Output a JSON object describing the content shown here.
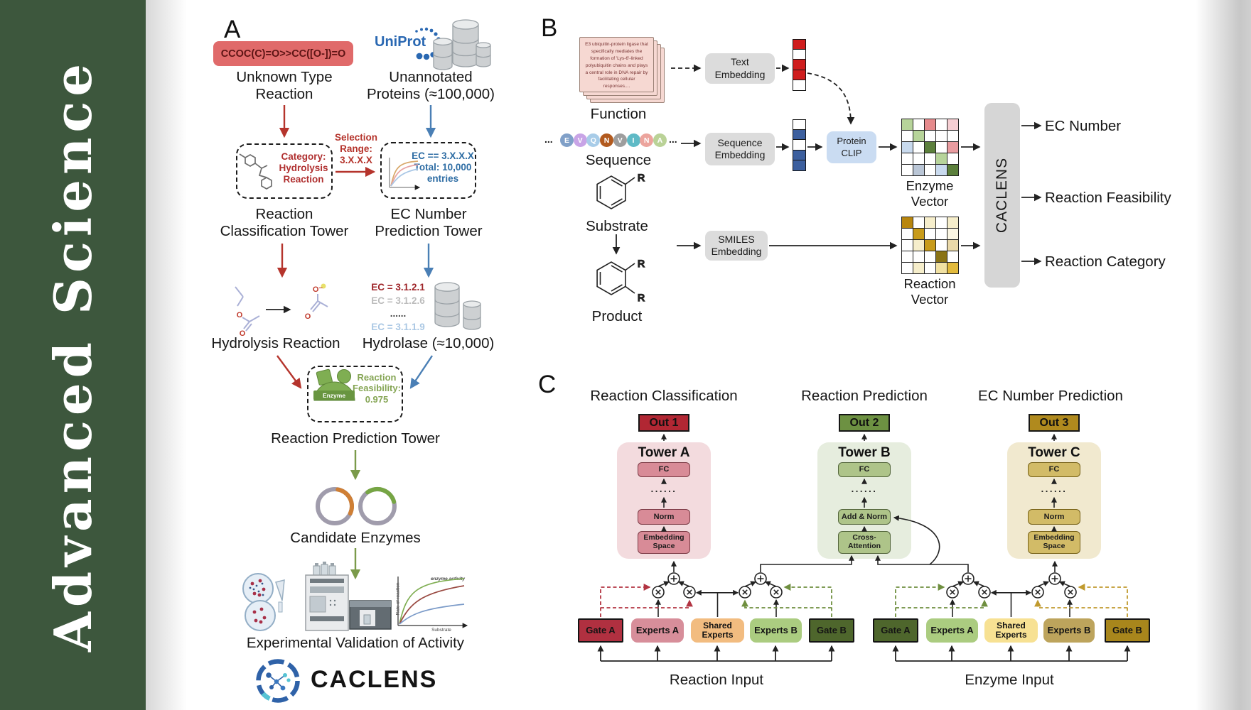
{
  "sidebar": {
    "journal_title": "Advanced  Science"
  },
  "panel_a": {
    "label": "A",
    "smiles_box": "CCOC(C)=O>>CC([O-])=O",
    "unknown_type": "Unknown Type\nReaction",
    "uniprot": "UniProt",
    "unannotated": "Unannotated\nProteins (≈100,000)",
    "selection_range": "Selection\nRange:\n3.X.X.X",
    "category_box": "Category:\nHydrolysis\nReaction",
    "ec_filter_box": "EC == 3.X.X.X\nTotal: 10,000\nentries",
    "tower1": "Reaction\nClassification Tower",
    "tower2": "EC Number\nPrediction Tower",
    "hydrolysis": "Hydrolysis Reaction",
    "ec_items": [
      {
        "text": "EC = 3.1.2.1",
        "color": "#9e2428"
      },
      {
        "text": "EC = 3.1.2.6",
        "color": "#bcbcbc"
      },
      {
        "text": "......",
        "color": "#3f3f3f"
      },
      {
        "text": "EC = 3.1.1.9",
        "color": "#abc8e4"
      }
    ],
    "hydrolase": "Hydrolase (≈10,000)",
    "enzyme": "Enzyme",
    "feasibility": "Reaction\nFeasibility:\n0.975",
    "tower3": "Reaction Prediction Tower",
    "candidates": "Candidate Enzymes",
    "plot": {
      "ylabel": "Rate of reaction",
      "xlabel": "Substrate",
      "note": "enzyme activity"
    },
    "validation": "Experimental Validation of Activity",
    "brand": "CACLENS",
    "atoms": {
      "o": "O",
      "o_minus": "O⁻"
    }
  },
  "panel_b": {
    "label": "B",
    "card_text": "E3 ubiquitin-protein ligase that specifically mediates the formation of 'Lys-6'-linked polyubiquitin chains and plays a central role in DNA repair by facilitating cellular responses....",
    "function": "Function",
    "sequence": "Sequence",
    "substrate": "Substrate",
    "product": "Product",
    "r_group": "R",
    "dots": "...",
    "residues": [
      {
        "letter": "E",
        "color": "#80a0c8"
      },
      {
        "letter": "V",
        "color": "#c8a4e6"
      },
      {
        "letter": "Q",
        "color": "#a8cce8"
      },
      {
        "letter": "N",
        "color": "#b25a1e"
      },
      {
        "letter": "V",
        "color": "#9e9e9e"
      },
      {
        "letter": "I",
        "color": "#5fbac6"
      },
      {
        "letter": "N",
        "color": "#eca49d"
      },
      {
        "letter": "A",
        "color": "#bad297"
      }
    ],
    "text_embedding": "Text\nEmbedding",
    "sequence_embedding": "Sequence\nEmbedding",
    "smiles_embedding": "SMILES\nEmbedding",
    "protein_clip": "Protein\nCLIP",
    "enzyme_vector": "Enzyme Vector",
    "reaction_vector": "Reaction Vector",
    "caclens": "CACLENS",
    "outputs": [
      "EC Number",
      "Reaction Feasibility",
      "Reaction Category"
    ],
    "text_vector_cells": [
      "#cf1d1d",
      "#ffffff",
      "#cf1d1d",
      "#cf1d1d",
      "#ffffff"
    ],
    "seq_vector_cells": [
      "#ffffff",
      "#3c5f9e",
      "#ffffff",
      "#3c5f9e",
      "#3c5f9e"
    ],
    "enzyme_matrix": [
      [
        "#b7d49a",
        "#ffffff",
        "#e68a8c",
        "#ffffff",
        "#f6cfd3"
      ],
      [
        "#ffffff",
        "#b7d49a",
        "#ffffff",
        "#ffffff",
        "#ffffff"
      ],
      [
        "#c9daee",
        "#ffffff",
        "#5c803c",
        "#ffffff",
        "#e99ca0"
      ],
      [
        "#ffffff",
        "#ffffff",
        "#ffffff",
        "#b7d49a",
        "#ffffff"
      ],
      [
        "#ffffff",
        "#bac6d6",
        "#ffffff",
        "#c9daee",
        "#5c803c"
      ]
    ],
    "reaction_matrix": [
      [
        "#b8860e",
        "#ffffff",
        "#f6eecb",
        "#ffffff",
        "#f6eecb"
      ],
      [
        "#ffffff",
        "#c89b1a",
        "#ffffff",
        "#ffffff",
        "#fbf6e3"
      ],
      [
        "#ffffff",
        "#f6eecb",
        "#c89b1a",
        "#ffffff",
        "#ead9a9"
      ],
      [
        "#ffffff",
        "#ffffff",
        "#ffffff",
        "#8a7315",
        "#ffffff"
      ],
      [
        "#ffffff",
        "#f6eecb",
        "#ffffff",
        "#f1e1a2",
        "#e2ba3c"
      ]
    ]
  },
  "panel_c": {
    "label": "C",
    "headers": [
      "Reaction Classification",
      "Reaction Prediction",
      "EC Number Prediction"
    ],
    "towers": [
      {
        "out": "Out 1",
        "name": "Tower A",
        "fc": "FC",
        "dots": "......",
        "mid": "Norm",
        "bottom": "Embedding\nSpace"
      },
      {
        "out": "Out 2",
        "name": "Tower B",
        "fc": "FC",
        "dots": "......",
        "mid": "Add & Norm",
        "bottom": "Cross-\nAttention"
      },
      {
        "out": "Out 3",
        "name": "Tower C",
        "fc": "FC",
        "dots": "......",
        "mid": "Norm",
        "bottom": "Embedding\nSpace"
      }
    ],
    "moe_left": {
      "gate_a": "Gate A",
      "experts_a": "Experts A",
      "shared": "Shared\nExperts",
      "experts_b": "Experts B",
      "gate_b": "Gate B",
      "input_label": "Reaction Input"
    },
    "moe_right": {
      "gate_a": "Gate A",
      "experts_a": "Experts A",
      "shared": "Shared\nExperts",
      "experts_b": "Experts B",
      "gate_b": "Gate B",
      "input_label": "Enzyme Input"
    }
  }
}
